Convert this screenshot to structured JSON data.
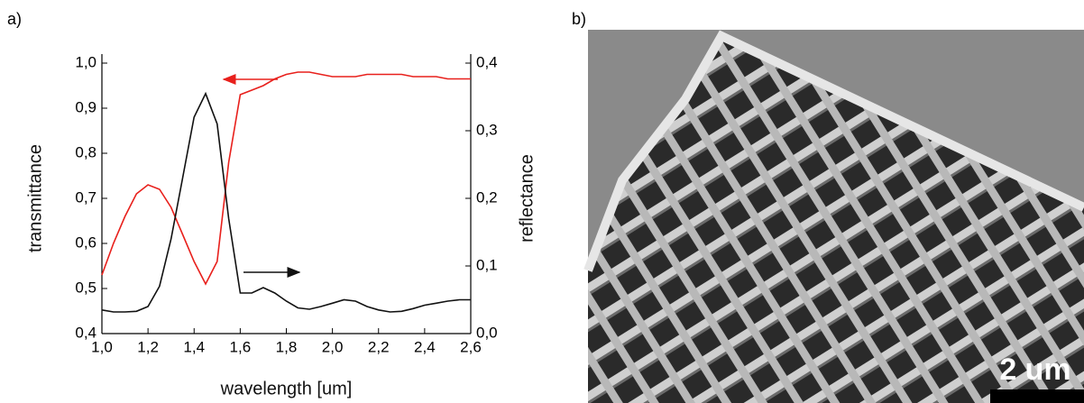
{
  "panel_labels": [
    "a)",
    "b)"
  ],
  "chart_data": {
    "type": "line",
    "x_label": "wavelength [um]",
    "y_label": "transmittance",
    "y2_label": "reflectance",
    "x": [
      1.0,
      1.05,
      1.1,
      1.15,
      1.2,
      1.25,
      1.3,
      1.35,
      1.4,
      1.45,
      1.5,
      1.55,
      1.6,
      1.65,
      1.7,
      1.75,
      1.8,
      1.85,
      1.9,
      1.95,
      2.0,
      2.05,
      2.1,
      2.15,
      2.2,
      2.25,
      2.3,
      2.35,
      2.4,
      2.45,
      2.5,
      2.55,
      2.6
    ],
    "series": [
      {
        "name": "transmittance",
        "color": "#e8201c",
        "axis": "y",
        "values": [
          0.53,
          0.6,
          0.66,
          0.71,
          0.73,
          0.72,
          0.68,
          0.62,
          0.56,
          0.51,
          0.56,
          0.78,
          0.93,
          0.94,
          0.95,
          0.965,
          0.975,
          0.98,
          0.98,
          0.975,
          0.97,
          0.97,
          0.97,
          0.975,
          0.975,
          0.975,
          0.975,
          0.97,
          0.97,
          0.97,
          0.965,
          0.965,
          0.965
        ]
      },
      {
        "name": "reflectance",
        "color": "#111111",
        "axis": "y2",
        "values": [
          0.035,
          0.032,
          0.032,
          0.033,
          0.04,
          0.07,
          0.14,
          0.23,
          0.32,
          0.355,
          0.31,
          0.17,
          0.06,
          0.06,
          0.068,
          0.06,
          0.048,
          0.038,
          0.036,
          0.04,
          0.045,
          0.05,
          0.048,
          0.04,
          0.035,
          0.032,
          0.033,
          0.037,
          0.042,
          0.045,
          0.048,
          0.05,
          0.05
        ]
      }
    ],
    "xlim": [
      1.0,
      2.6
    ],
    "xticks": [
      {
        "value": 1.0,
        "label": "1,0"
      },
      {
        "value": 1.2,
        "label": "1,2"
      },
      {
        "value": 1.4,
        "label": "1,4"
      },
      {
        "value": 1.6,
        "label": "1,6"
      },
      {
        "value": 1.8,
        "label": "1,8"
      },
      {
        "value": 2.0,
        "label": "2,0"
      },
      {
        "value": 2.2,
        "label": "2,2"
      },
      {
        "value": 2.4,
        "label": "2,4"
      },
      {
        "value": 2.6,
        "label": "2,6"
      }
    ],
    "ylim": [
      0.4,
      1.0
    ],
    "yticks": [
      {
        "value": 0.4,
        "label": "0,4"
      },
      {
        "value": 0.5,
        "label": "0,5"
      },
      {
        "value": 0.6,
        "label": "0,6"
      },
      {
        "value": 0.7,
        "label": "0,7"
      },
      {
        "value": 0.8,
        "label": "0,8"
      },
      {
        "value": 0.9,
        "label": "0,9"
      },
      {
        "value": 1.0,
        "label": "1,0"
      }
    ],
    "y2lim": [
      0.0,
      0.4
    ],
    "y2ticks": [
      {
        "value": 0.0,
        "label": "0,0"
      },
      {
        "value": 0.1,
        "label": "0,1"
      },
      {
        "value": 0.2,
        "label": "0,2"
      },
      {
        "value": 0.3,
        "label": "0,3"
      },
      {
        "value": 0.4,
        "label": "0,4"
      }
    ],
    "grid": false
  },
  "image": {
    "scale_bar": "2 um"
  }
}
